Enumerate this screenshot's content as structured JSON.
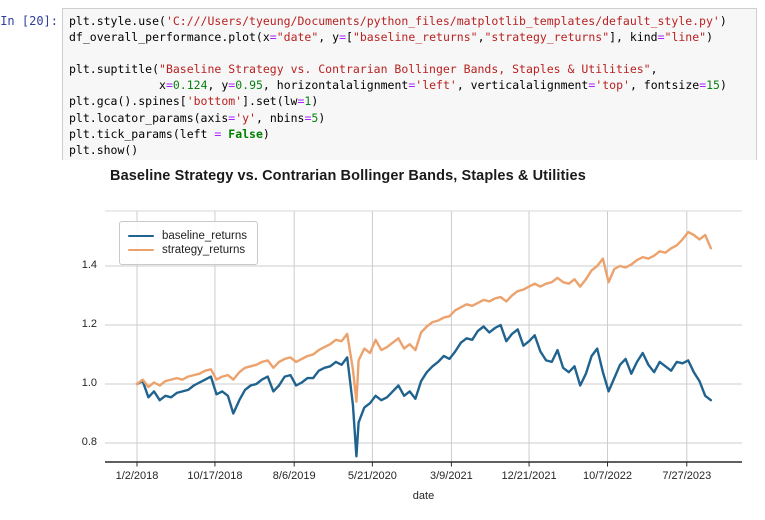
{
  "notebook": {
    "prompt": "In [20]:",
    "code_lines": [
      [
        [
          "plt.style.use(",
          "plain"
        ],
        [
          "'C:///Users/tyeung/Documents/python_files/matplotlib_templates/default_style.py'",
          "str"
        ],
        [
          ")",
          "plain"
        ]
      ],
      [
        [
          "df_overall_performance.plot(x",
          "plain"
        ],
        [
          "=",
          "op"
        ],
        [
          "\"date\"",
          "str"
        ],
        [
          ", y",
          "plain"
        ],
        [
          "=",
          "op"
        ],
        [
          "[",
          "plain"
        ],
        [
          "\"baseline_returns\"",
          "str"
        ],
        [
          ",",
          "plain"
        ],
        [
          "\"strategy_returns\"",
          "str"
        ],
        [
          "], kind",
          "plain"
        ],
        [
          "=",
          "op"
        ],
        [
          "\"line\"",
          "str"
        ],
        [
          ")",
          "plain"
        ]
      ],
      [],
      [
        [
          "plt.suptitle(",
          "plain"
        ],
        [
          "\"Baseline Strategy vs. Contrarian Bollinger Bands, Staples & Utilities\"",
          "str"
        ],
        [
          ",",
          "plain"
        ]
      ],
      [
        [
          "             x",
          "plain"
        ],
        [
          "=",
          "op"
        ],
        [
          "0.124",
          "num"
        ],
        [
          ", y",
          "plain"
        ],
        [
          "=",
          "op"
        ],
        [
          "0.95",
          "num"
        ],
        [
          ", horizontalalignment",
          "plain"
        ],
        [
          "=",
          "op"
        ],
        [
          "'left'",
          "str"
        ],
        [
          ", verticalalignment",
          "plain"
        ],
        [
          "=",
          "op"
        ],
        [
          "'top'",
          "str"
        ],
        [
          ", fontsize",
          "plain"
        ],
        [
          "=",
          "op"
        ],
        [
          "15",
          "num"
        ],
        [
          ")",
          "plain"
        ]
      ],
      [
        [
          "plt.gca().spines[",
          "plain"
        ],
        [
          "'bottom'",
          "str"
        ],
        [
          "].set(lw",
          "plain"
        ],
        [
          "=",
          "op"
        ],
        [
          "1",
          "num"
        ],
        [
          ")",
          "plain"
        ]
      ],
      [
        [
          "plt.locator_params(axis",
          "plain"
        ],
        [
          "=",
          "op"
        ],
        [
          "'y'",
          "str"
        ],
        [
          ", nbins",
          "plain"
        ],
        [
          "=",
          "op"
        ],
        [
          "5",
          "num"
        ],
        [
          ")",
          "plain"
        ]
      ],
      [
        [
          "plt.tick_params(left ",
          "plain"
        ],
        [
          "=",
          "op"
        ],
        [
          " ",
          "plain"
        ],
        [
          "False",
          "kw"
        ],
        [
          ")",
          "plain"
        ]
      ],
      [
        [
          "plt.show()",
          "plain"
        ]
      ]
    ]
  },
  "colors": {
    "prompt": "#303f9f",
    "string": "#ba2121",
    "number": "#0a8013",
    "keyword": "#008000",
    "operator": "#aa22ff",
    "grid": "#cccccc",
    "spine": "#2b2b2b",
    "tick_text": "#262626",
    "baseline_line": "#20638f",
    "strategy_line": "#eca26c"
  },
  "chart_data": {
    "type": "line",
    "title": "Baseline Strategy vs. Contrarian Bollinger Bands, Staples & Utilities",
    "xlabel": "date",
    "ylabel": "",
    "grid": true,
    "legend_position": "upper left",
    "y_ticks": [
      0.8,
      1.0,
      1.2,
      1.4
    ],
    "ylim": [
      0.736,
      1.586
    ],
    "x_tick_labels": [
      "1/2/2018",
      "10/17/2018",
      "8/6/2019",
      "5/21/2020",
      "3/9/2021",
      "12/21/2021",
      "10/7/2022",
      "7/27/2023"
    ],
    "x_tick_dates": [
      "2018-01-02",
      "2018-10-17",
      "2019-08-06",
      "2020-05-21",
      "2021-03-09",
      "2021-12-21",
      "2022-10-07",
      "2023-07-27"
    ],
    "x": [
      "2018-01-02",
      "2018-01-23",
      "2018-02-13",
      "2018-03-06",
      "2018-03-27",
      "2018-04-17",
      "2018-05-08",
      "2018-05-29",
      "2018-06-19",
      "2018-07-10",
      "2018-07-31",
      "2018-08-21",
      "2018-09-11",
      "2018-10-02",
      "2018-10-23",
      "2018-11-13",
      "2018-12-04",
      "2018-12-24",
      "2019-01-15",
      "2019-02-05",
      "2019-02-26",
      "2019-03-19",
      "2019-04-09",
      "2019-04-30",
      "2019-05-21",
      "2019-06-11",
      "2019-07-02",
      "2019-07-23",
      "2019-08-13",
      "2019-09-03",
      "2019-09-24",
      "2019-10-15",
      "2019-11-05",
      "2019-11-26",
      "2019-12-17",
      "2020-01-07",
      "2020-01-28",
      "2020-02-18",
      "2020-03-10",
      "2020-03-23",
      "2020-03-31",
      "2020-04-21",
      "2020-05-12",
      "2020-06-02",
      "2020-06-23",
      "2020-07-14",
      "2020-08-04",
      "2020-08-25",
      "2020-09-15",
      "2020-10-06",
      "2020-10-27",
      "2020-11-17",
      "2020-12-08",
      "2020-12-29",
      "2021-01-19",
      "2021-02-09",
      "2021-03-02",
      "2021-03-23",
      "2021-04-13",
      "2021-05-04",
      "2021-05-25",
      "2021-06-15",
      "2021-07-06",
      "2021-07-27",
      "2021-08-17",
      "2021-09-07",
      "2021-09-28",
      "2021-10-19",
      "2021-11-09",
      "2021-11-30",
      "2021-12-21",
      "2022-01-11",
      "2022-02-01",
      "2022-02-22",
      "2022-03-15",
      "2022-04-05",
      "2022-04-26",
      "2022-05-17",
      "2022-06-07",
      "2022-06-28",
      "2022-07-19",
      "2022-08-09",
      "2022-08-30",
      "2022-09-20",
      "2022-10-11",
      "2022-11-01",
      "2022-11-22",
      "2022-12-13",
      "2023-01-03",
      "2023-01-24",
      "2023-02-14",
      "2023-03-07",
      "2023-03-28",
      "2023-04-18",
      "2023-05-09",
      "2023-05-30",
      "2023-06-20",
      "2023-07-11",
      "2023-08-01",
      "2023-08-22",
      "2023-09-12",
      "2023-10-03",
      "2023-10-24"
    ],
    "series": [
      {
        "name": "baseline_returns",
        "color": "#20638f",
        "values": [
          1.0,
          1.01,
          0.955,
          0.975,
          0.945,
          0.96,
          0.955,
          0.97,
          0.975,
          0.98,
          0.995,
          1.005,
          1.015,
          1.025,
          0.965,
          0.975,
          0.96,
          0.9,
          0.945,
          0.98,
          0.995,
          1.0,
          1.015,
          1.025,
          0.975,
          0.995,
          1.025,
          1.03,
          0.995,
          1.005,
          1.02,
          1.02,
          1.045,
          1.055,
          1.06,
          1.075,
          1.065,
          1.09,
          0.93,
          0.755,
          0.87,
          0.92,
          0.935,
          0.96,
          0.945,
          0.955,
          0.975,
          0.995,
          0.96,
          0.975,
          0.95,
          1.01,
          1.04,
          1.06,
          1.075,
          1.095,
          1.085,
          1.11,
          1.14,
          1.155,
          1.15,
          1.18,
          1.195,
          1.175,
          1.19,
          1.2,
          1.145,
          1.17,
          1.185,
          1.13,
          1.145,
          1.165,
          1.11,
          1.08,
          1.075,
          1.115,
          1.055,
          1.04,
          1.06,
          0.995,
          1.035,
          1.095,
          1.12,
          1.04,
          0.975,
          1.02,
          1.065,
          1.085,
          1.035,
          1.075,
          1.105,
          1.065,
          1.04,
          1.075,
          1.06,
          1.045,
          1.075,
          1.07,
          1.08,
          1.04,
          1.01,
          0.96,
          0.945
        ]
      },
      {
        "name": "strategy_returns",
        "color": "#eca26c",
        "values": [
          1.0,
          1.015,
          0.99,
          1.005,
          0.995,
          1.01,
          1.015,
          1.02,
          1.015,
          1.025,
          1.03,
          1.035,
          1.045,
          1.05,
          1.015,
          1.025,
          1.03,
          1.015,
          1.04,
          1.055,
          1.06,
          1.065,
          1.075,
          1.08,
          1.055,
          1.075,
          1.085,
          1.09,
          1.075,
          1.085,
          1.095,
          1.1,
          1.115,
          1.125,
          1.135,
          1.15,
          1.145,
          1.17,
          1.05,
          0.94,
          1.08,
          1.12,
          1.105,
          1.15,
          1.115,
          1.125,
          1.14,
          1.155,
          1.12,
          1.135,
          1.115,
          1.175,
          1.195,
          1.21,
          1.215,
          1.225,
          1.23,
          1.25,
          1.26,
          1.27,
          1.265,
          1.275,
          1.285,
          1.28,
          1.29,
          1.295,
          1.28,
          1.3,
          1.315,
          1.32,
          1.33,
          1.34,
          1.33,
          1.34,
          1.345,
          1.36,
          1.345,
          1.34,
          1.355,
          1.33,
          1.355,
          1.385,
          1.4,
          1.425,
          1.345,
          1.39,
          1.4,
          1.395,
          1.405,
          1.42,
          1.43,
          1.425,
          1.435,
          1.45,
          1.445,
          1.46,
          1.47,
          1.49,
          1.515,
          1.505,
          1.49,
          1.505,
          1.46
        ]
      }
    ]
  }
}
